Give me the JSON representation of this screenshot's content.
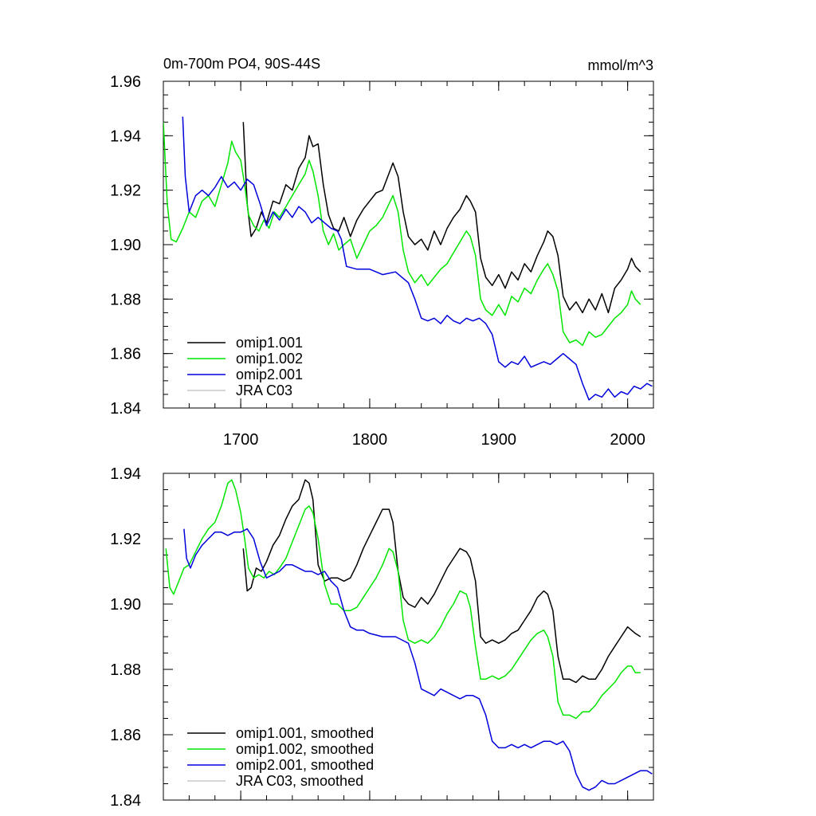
{
  "chart_data": [
    {
      "type": "line",
      "title": "0m-700m PO4, 90S-44S",
      "units": "mmol/m^3",
      "xlim": [
        1640,
        2020
      ],
      "ylim": [
        1.84,
        1.96
      ],
      "xticks": [
        1700,
        1800,
        1900,
        2000
      ],
      "xtick_labels": [
        "1700",
        "1800",
        "1900",
        "2000"
      ],
      "yticks": [
        1.84,
        1.86,
        1.88,
        1.9,
        1.92,
        1.94,
        1.96
      ],
      "ytick_labels": [
        "1.84",
        "1.86",
        "1.88",
        "1.90",
        "1.92",
        "1.94",
        "1.96"
      ],
      "legend_position": "bottom-left",
      "series": [
        {
          "name": "omip1.001",
          "color": "#000000",
          "x": [
            1702,
            1705,
            1708,
            1712,
            1716,
            1720,
            1725,
            1730,
            1735,
            1740,
            1745,
            1750,
            1753,
            1756,
            1760,
            1764,
            1768,
            1772,
            1776,
            1780,
            1785,
            1790,
            1795,
            1800,
            1805,
            1810,
            1814,
            1818,
            1822,
            1826,
            1830,
            1835,
            1840,
            1845,
            1850,
            1855,
            1860,
            1865,
            1870,
            1875,
            1878,
            1882,
            1886,
            1890,
            1895,
            1900,
            1905,
            1910,
            1915,
            1920,
            1925,
            1930,
            1935,
            1938,
            1942,
            1946,
            1950,
            1955,
            1960,
            1965,
            1970,
            1975,
            1980,
            1985,
            1990,
            1995,
            2000,
            2003,
            2006,
            2010
          ],
          "y": [
            1.945,
            1.915,
            1.903,
            1.906,
            1.912,
            1.908,
            1.916,
            1.915,
            1.922,
            1.92,
            1.928,
            1.932,
            1.94,
            1.936,
            1.937,
            1.922,
            1.911,
            1.906,
            1.905,
            1.91,
            1.903,
            1.909,
            1.913,
            1.916,
            1.919,
            1.92,
            1.925,
            1.93,
            1.925,
            1.912,
            1.903,
            1.9,
            1.902,
            1.898,
            1.905,
            1.9,
            1.906,
            1.91,
            1.913,
            1.918,
            1.916,
            1.912,
            1.895,
            1.888,
            1.885,
            1.889,
            1.884,
            1.89,
            1.887,
            1.893,
            1.89,
            1.896,
            1.901,
            1.905,
            1.903,
            1.896,
            1.881,
            1.876,
            1.879,
            1.875,
            1.88,
            1.876,
            1.882,
            1.875,
            1.884,
            1.887,
            1.891,
            1.895,
            1.892,
            1.89
          ]
        },
        {
          "name": "omip1.002",
          "color": "#00e600",
          "x": [
            1640,
            1643,
            1646,
            1650,
            1655,
            1660,
            1665,
            1670,
            1675,
            1680,
            1685,
            1690,
            1693,
            1696,
            1700,
            1703,
            1706,
            1710,
            1714,
            1718,
            1722,
            1726,
            1730,
            1735,
            1740,
            1745,
            1750,
            1753,
            1756,
            1760,
            1764,
            1768,
            1772,
            1776,
            1780,
            1785,
            1790,
            1795,
            1800,
            1805,
            1810,
            1814,
            1818,
            1822,
            1826,
            1830,
            1835,
            1840,
            1845,
            1850,
            1855,
            1860,
            1865,
            1870,
            1875,
            1878,
            1882,
            1886,
            1890,
            1895,
            1900,
            1905,
            1910,
            1915,
            1920,
            1925,
            1930,
            1935,
            1938,
            1942,
            1946,
            1950,
            1955,
            1960,
            1965,
            1970,
            1975,
            1980,
            1985,
            1990,
            1995,
            2000,
            2003,
            2006,
            2010
          ],
          "y": [
            1.945,
            1.915,
            1.902,
            1.901,
            1.906,
            1.912,
            1.91,
            1.916,
            1.918,
            1.914,
            1.922,
            1.93,
            1.938,
            1.934,
            1.931,
            1.922,
            1.911,
            1.907,
            1.905,
            1.909,
            1.906,
            1.912,
            1.91,
            1.914,
            1.918,
            1.922,
            1.926,
            1.931,
            1.927,
            1.918,
            1.905,
            1.9,
            1.904,
            1.898,
            1.9,
            1.902,
            1.895,
            1.9,
            1.905,
            1.907,
            1.91,
            1.914,
            1.918,
            1.912,
            1.898,
            1.89,
            1.886,
            1.889,
            1.885,
            1.888,
            1.891,
            1.893,
            1.897,
            1.901,
            1.905,
            1.903,
            1.896,
            1.88,
            1.876,
            1.874,
            1.878,
            1.874,
            1.881,
            1.879,
            1.884,
            1.882,
            1.887,
            1.891,
            1.893,
            1.889,
            1.883,
            1.868,
            1.864,
            1.865,
            1.863,
            1.868,
            1.866,
            1.867,
            1.87,
            1.873,
            1.875,
            1.878,
            1.883,
            1.88,
            1.878
          ]
        },
        {
          "name": "omip2.001",
          "color": "#0000dd",
          "x": [
            1655,
            1657,
            1660,
            1665,
            1670,
            1675,
            1680,
            1685,
            1690,
            1695,
            1700,
            1705,
            1710,
            1715,
            1720,
            1725,
            1730,
            1735,
            1740,
            1745,
            1750,
            1755,
            1760,
            1765,
            1770,
            1775,
            1778,
            1782,
            1790,
            1800,
            1810,
            1820,
            1830,
            1835,
            1840,
            1845,
            1850,
            1855,
            1860,
            1865,
            1870,
            1875,
            1880,
            1885,
            1890,
            1895,
            1900,
            1905,
            1910,
            1915,
            1920,
            1925,
            1930,
            1935,
            1940,
            1945,
            1950,
            1955,
            1960,
            1965,
            1970,
            1975,
            1980,
            1985,
            1990,
            1995,
            2000,
            2005,
            2010,
            2015,
            2019
          ],
          "y": [
            1.947,
            1.925,
            1.912,
            1.918,
            1.92,
            1.918,
            1.921,
            1.925,
            1.921,
            1.923,
            1.92,
            1.924,
            1.922,
            1.915,
            1.907,
            1.912,
            1.909,
            1.913,
            1.91,
            1.914,
            1.912,
            1.908,
            1.91,
            1.908,
            1.906,
            1.905,
            1.902,
            1.892,
            1.891,
            1.891,
            1.889,
            1.89,
            1.886,
            1.88,
            1.873,
            1.872,
            1.873,
            1.871,
            1.874,
            1.872,
            1.871,
            1.873,
            1.872,
            1.873,
            1.871,
            1.867,
            1.857,
            1.855,
            1.857,
            1.856,
            1.859,
            1.855,
            1.856,
            1.857,
            1.856,
            1.858,
            1.86,
            1.858,
            1.856,
            1.849,
            1.843,
            1.845,
            1.844,
            1.847,
            1.844,
            1.846,
            1.845,
            1.848,
            1.847,
            1.849,
            1.848
          ]
        },
        {
          "name": "JRA C03",
          "color": "#c8c8c8",
          "x": [],
          "y": []
        }
      ]
    },
    {
      "type": "line",
      "title": "",
      "xlim": [
        1640,
        2020
      ],
      "ylim": [
        1.84,
        1.94
      ],
      "xticks": [
        1700,
        1800,
        1900,
        2000
      ],
      "yticks": [
        1.84,
        1.86,
        1.88,
        1.9,
        1.92,
        1.94
      ],
      "ytick_labels": [
        "1.84",
        "1.86",
        "1.88",
        "1.90",
        "1.92",
        "1.94"
      ],
      "legend_position": "bottom-left",
      "series": [
        {
          "name": "omip1.001, smoothed",
          "color": "#000000",
          "x": [
            1702,
            1705,
            1708,
            1712,
            1716,
            1720,
            1725,
            1730,
            1735,
            1740,
            1745,
            1750,
            1753,
            1756,
            1760,
            1765,
            1770,
            1775,
            1780,
            1785,
            1790,
            1795,
            1800,
            1805,
            1810,
            1815,
            1818,
            1822,
            1826,
            1830,
            1835,
            1840,
            1845,
            1850,
            1855,
            1860,
            1865,
            1870,
            1875,
            1878,
            1882,
            1886,
            1890,
            1895,
            1900,
            1905,
            1910,
            1915,
            1920,
            1925,
            1930,
            1935,
            1938,
            1942,
            1946,
            1950,
            1955,
            1960,
            1965,
            1970,
            1975,
            1980,
            1985,
            1990,
            1995,
            2000,
            2003,
            2006,
            2010
          ],
          "y": [
            1.917,
            1.904,
            1.905,
            1.911,
            1.91,
            1.913,
            1.918,
            1.921,
            1.926,
            1.93,
            1.932,
            1.938,
            1.937,
            1.932,
            1.912,
            1.907,
            1.908,
            1.908,
            1.907,
            1.908,
            1.912,
            1.917,
            1.921,
            1.925,
            1.929,
            1.929,
            1.925,
            1.91,
            1.902,
            1.9,
            1.899,
            1.902,
            1.9,
            1.903,
            1.907,
            1.911,
            1.914,
            1.917,
            1.916,
            1.914,
            1.907,
            1.89,
            1.888,
            1.889,
            1.888,
            1.889,
            1.891,
            1.892,
            1.895,
            1.898,
            1.902,
            1.904,
            1.903,
            1.898,
            1.884,
            1.877,
            1.877,
            1.876,
            1.878,
            1.877,
            1.877,
            1.88,
            1.884,
            1.887,
            1.89,
            1.893,
            1.892,
            1.891,
            1.89
          ]
        },
        {
          "name": "omip1.002, smoothed",
          "color": "#00e600",
          "x": [
            1642,
            1645,
            1648,
            1652,
            1656,
            1660,
            1665,
            1670,
            1675,
            1680,
            1685,
            1690,
            1693,
            1696,
            1700,
            1703,
            1706,
            1710,
            1714,
            1718,
            1722,
            1726,
            1730,
            1735,
            1740,
            1745,
            1750,
            1753,
            1756,
            1760,
            1765,
            1770,
            1775,
            1780,
            1785,
            1790,
            1795,
            1800,
            1805,
            1810,
            1815,
            1818,
            1822,
            1826,
            1830,
            1835,
            1840,
            1845,
            1850,
            1855,
            1860,
            1865,
            1870,
            1875,
            1878,
            1882,
            1886,
            1890,
            1895,
            1900,
            1905,
            1910,
            1915,
            1920,
            1925,
            1930,
            1935,
            1938,
            1942,
            1946,
            1950,
            1955,
            1960,
            1965,
            1970,
            1975,
            1980,
            1985,
            1990,
            1995,
            2000,
            2003,
            2006,
            2010
          ],
          "y": [
            1.917,
            1.905,
            1.903,
            1.907,
            1.911,
            1.912,
            1.916,
            1.92,
            1.923,
            1.925,
            1.93,
            1.937,
            1.938,
            1.935,
            1.928,
            1.92,
            1.911,
            1.908,
            1.909,
            1.908,
            1.91,
            1.909,
            1.911,
            1.914,
            1.919,
            1.924,
            1.929,
            1.93,
            1.928,
            1.92,
            1.906,
            1.9,
            1.9,
            1.898,
            1.898,
            1.899,
            1.902,
            1.905,
            1.908,
            1.912,
            1.917,
            1.916,
            1.91,
            1.895,
            1.889,
            1.888,
            1.889,
            1.888,
            1.89,
            1.893,
            1.897,
            1.9,
            1.904,
            1.903,
            1.899,
            1.887,
            1.877,
            1.877,
            1.878,
            1.877,
            1.878,
            1.88,
            1.883,
            1.886,
            1.889,
            1.891,
            1.892,
            1.89,
            1.884,
            1.87,
            1.866,
            1.866,
            1.865,
            1.867,
            1.867,
            1.869,
            1.872,
            1.874,
            1.876,
            1.879,
            1.881,
            1.881,
            1.879,
            1.879
          ]
        },
        {
          "name": "omip2.001, smoothed",
          "color": "#0000dd",
          "x": [
            1656,
            1658,
            1661,
            1665,
            1670,
            1675,
            1680,
            1685,
            1690,
            1695,
            1700,
            1705,
            1710,
            1715,
            1720,
            1725,
            1730,
            1735,
            1740,
            1745,
            1750,
            1755,
            1760,
            1765,
            1770,
            1775,
            1780,
            1785,
            1790,
            1795,
            1800,
            1810,
            1820,
            1830,
            1835,
            1840,
            1845,
            1850,
            1855,
            1860,
            1865,
            1870,
            1875,
            1880,
            1885,
            1890,
            1895,
            1900,
            1905,
            1910,
            1915,
            1920,
            1925,
            1930,
            1935,
            1940,
            1945,
            1950,
            1955,
            1960,
            1965,
            1970,
            1975,
            1980,
            1985,
            1990,
            1995,
            2000,
            2005,
            2010,
            2015,
            2019
          ],
          "y": [
            1.923,
            1.914,
            1.911,
            1.915,
            1.918,
            1.92,
            1.922,
            1.922,
            1.921,
            1.922,
            1.922,
            1.923,
            1.92,
            1.913,
            1.908,
            1.909,
            1.91,
            1.912,
            1.912,
            1.911,
            1.91,
            1.91,
            1.909,
            1.91,
            1.907,
            1.905,
            1.898,
            1.893,
            1.892,
            1.892,
            1.891,
            1.89,
            1.89,
            1.888,
            1.882,
            1.874,
            1.873,
            1.872,
            1.874,
            1.873,
            1.872,
            1.871,
            1.872,
            1.872,
            1.871,
            1.866,
            1.858,
            1.856,
            1.856,
            1.857,
            1.856,
            1.857,
            1.856,
            1.857,
            1.858,
            1.858,
            1.857,
            1.858,
            1.855,
            1.848,
            1.844,
            1.843,
            1.844,
            1.846,
            1.845,
            1.845,
            1.846,
            1.847,
            1.848,
            1.849,
            1.849,
            1.848
          ]
        },
        {
          "name": "JRA C03, smoothed",
          "color": "#c8c8c8",
          "x": [],
          "y": []
        }
      ]
    }
  ]
}
